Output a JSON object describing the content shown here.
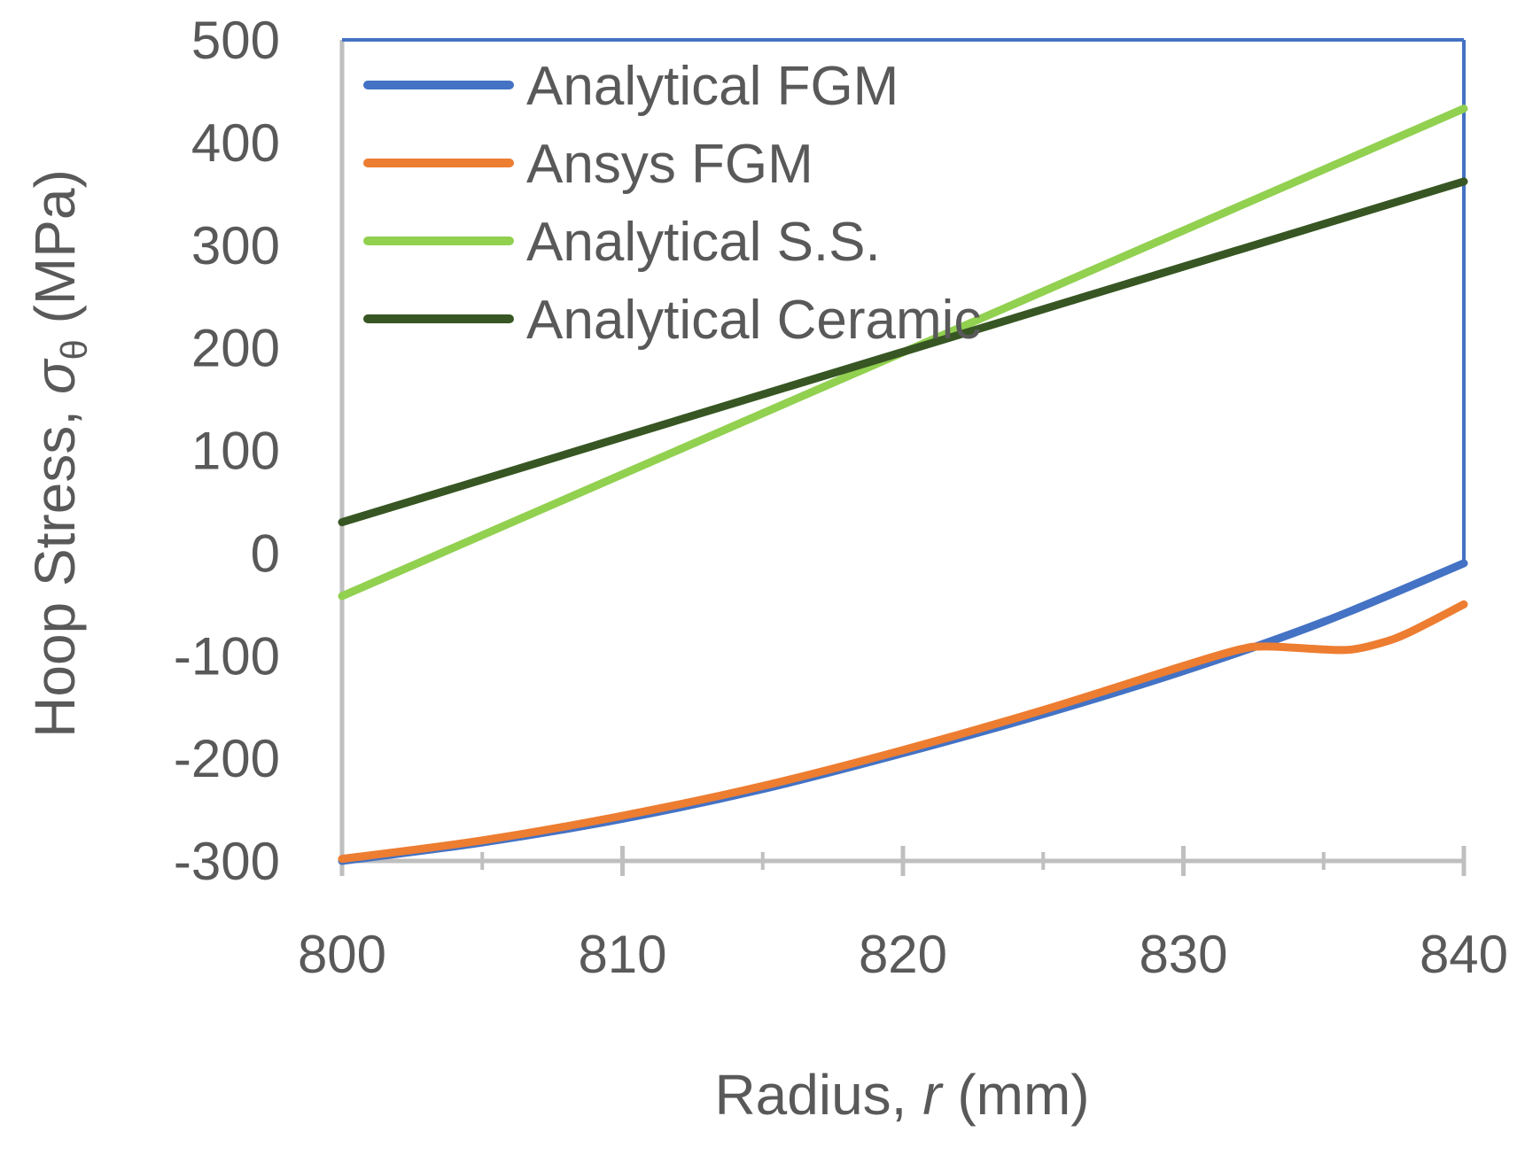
{
  "chart_data": {
    "type": "line",
    "xlabel": "Radius, r (mm)",
    "xlabel_parts": [
      "Radius, ",
      "r",
      " (mm)"
    ],
    "ylabel": "Hoop Stress, σθ (MPa)",
    "ylabel_parts": [
      "Hoop Stress, ",
      "σ",
      "θ",
      " (MPa)"
    ],
    "xlim": [
      800,
      840
    ],
    "ylim": [
      -300,
      500
    ],
    "x_ticks": [
      800,
      810,
      820,
      830,
      840
    ],
    "x_tick_labels": [
      "800",
      "810",
      "820",
      "830",
      "840"
    ],
    "x_minor_ticks": [
      805,
      815,
      825,
      835
    ],
    "y_ticks": [
      -300,
      -200,
      -100,
      0,
      100,
      200,
      300,
      400,
      500
    ],
    "y_tick_labels": [
      "-300",
      "-200",
      "-100",
      "0",
      "100",
      "200",
      "300",
      "400",
      "500"
    ],
    "grid": false,
    "legend_position": "top-left",
    "series": [
      {
        "name": "Analytical FGM",
        "color": "#4472C4",
        "x": [
          800,
          805,
          810,
          815,
          820,
          825,
          830,
          835,
          840
        ],
        "y": [
          -300,
          -282,
          -259,
          -230,
          -195,
          -157,
          -115,
          -67,
          -10
        ]
      },
      {
        "name": "Ansys FGM",
        "color": "#ED7D31",
        "x": [
          800,
          805,
          810,
          815,
          820,
          825,
          830,
          832,
          833,
          835,
          836,
          837,
          838,
          840
        ],
        "y": [
          -298,
          -280,
          -256,
          -227,
          -192,
          -153,
          -110,
          -94,
          -91,
          -94,
          -94,
          -88,
          -78,
          -50
        ]
      },
      {
        "name": "Analytical S.S.",
        "color": "#92D050",
        "x": [
          800,
          840
        ],
        "y": [
          -42,
          433
        ]
      },
      {
        "name": "Analytical Ceramic",
        "color": "#375623",
        "x": [
          800,
          840
        ],
        "y": [
          30,
          362
        ]
      }
    ]
  }
}
